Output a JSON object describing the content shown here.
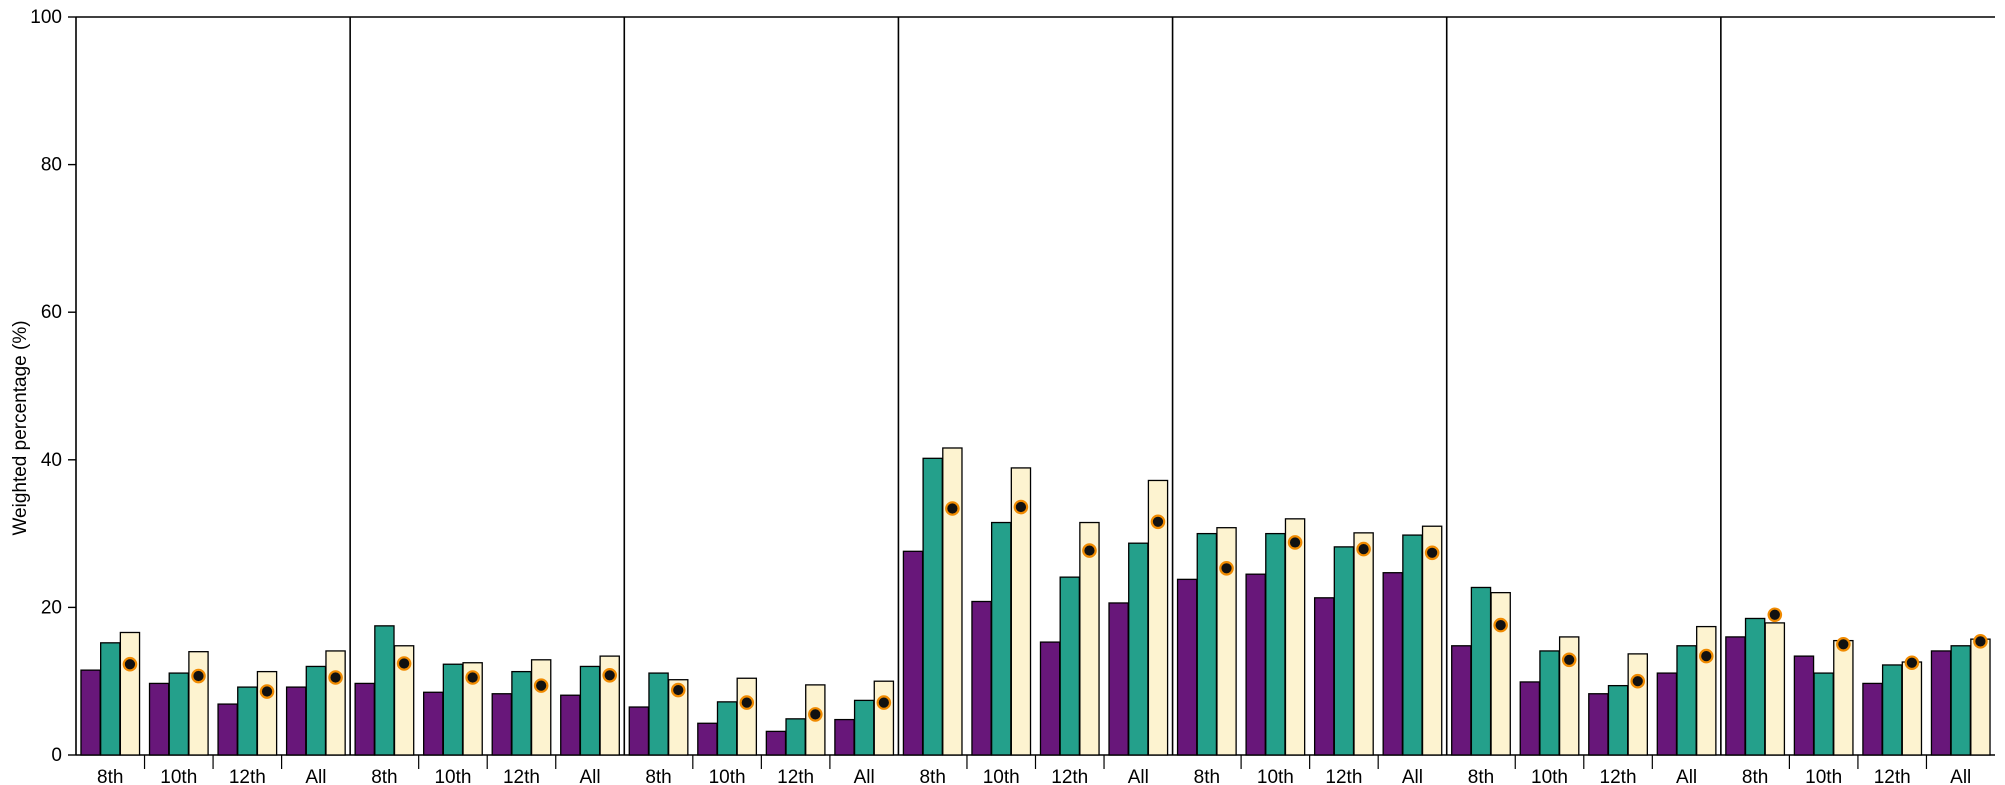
{
  "chart_data": {
    "type": "bar",
    "ylabel": "Weighted percentage (%)",
    "ylim": [
      0,
      100
    ],
    "yticks": [
      0,
      20,
      40,
      60,
      80,
      100
    ],
    "grid": false,
    "panel_count": 7,
    "categories": [
      "8th",
      "10th",
      "12th",
      "All"
    ],
    "colors": {
      "series_1": "#68177a",
      "series_2": "#24a08b",
      "series_3": "#fdf3d0",
      "marker_fill": "#111111",
      "marker_edge": "#f08a00",
      "outline": "#000000"
    },
    "panels": [
      {
        "bars": [
          [
            11.5,
            15.2,
            16.6
          ],
          [
            9.7,
            11.1,
            14.0
          ],
          [
            6.9,
            9.2,
            11.3
          ],
          [
            9.2,
            12.0,
            14.1
          ]
        ],
        "markers": [
          12.3,
          10.7,
          8.6,
          10.5
        ]
      },
      {
        "bars": [
          [
            9.7,
            17.5,
            14.8
          ],
          [
            8.5,
            12.3,
            12.5
          ],
          [
            8.3,
            11.3,
            12.9
          ],
          [
            8.1,
            12.0,
            13.4
          ]
        ],
        "markers": [
          12.4,
          10.5,
          9.4,
          10.8
        ]
      },
      {
        "bars": [
          [
            6.5,
            11.1,
            10.2
          ],
          [
            4.3,
            7.2,
            10.4
          ],
          [
            3.2,
            4.9,
            9.5
          ],
          [
            4.8,
            7.4,
            10.0
          ]
        ],
        "markers": [
          8.8,
          7.1,
          5.5,
          7.1
        ]
      },
      {
        "bars": [
          [
            27.6,
            40.2,
            41.6
          ],
          [
            20.8,
            31.5,
            38.9
          ],
          [
            15.3,
            24.1,
            31.5
          ],
          [
            20.6,
            28.7,
            37.2
          ]
        ],
        "markers": [
          33.4,
          33.6,
          27.7,
          31.6
        ]
      },
      {
        "bars": [
          [
            23.8,
            30.0,
            30.8
          ],
          [
            24.5,
            30.0,
            32.0
          ],
          [
            21.3,
            28.2,
            30.1
          ],
          [
            24.7,
            29.8,
            31.0
          ]
        ],
        "markers": [
          25.3,
          28.8,
          27.9,
          27.4
        ]
      },
      {
        "bars": [
          [
            14.8,
            22.7,
            22.0
          ],
          [
            9.9,
            14.1,
            16.0
          ],
          [
            8.3,
            9.4,
            13.7
          ],
          [
            11.1,
            14.8,
            17.4
          ]
        ],
        "markers": [
          17.6,
          12.9,
          10.0,
          13.4
        ]
      },
      {
        "bars": [
          [
            16.0,
            18.5,
            17.9
          ],
          [
            13.4,
            11.1,
            15.5
          ],
          [
            9.7,
            12.2,
            12.6
          ],
          [
            14.1,
            14.8,
            15.7
          ]
        ],
        "markers": [
          19.0,
          15.0,
          12.5,
          15.4
        ]
      }
    ]
  }
}
